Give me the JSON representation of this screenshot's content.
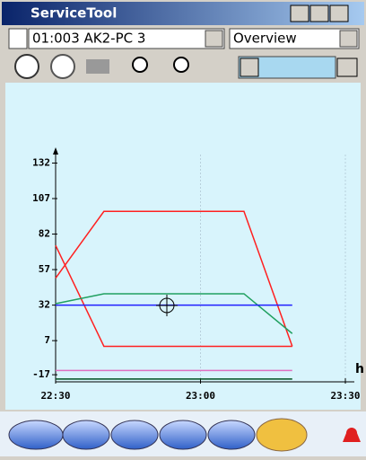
{
  "header": {
    "title": "ServiceTool"
  },
  "controls": {
    "device": "01:003 AK2-PC 3",
    "view": "Overview"
  },
  "chart_data": {
    "type": "line",
    "x_label": "h",
    "xlim": [
      0,
      60
    ],
    "xticks": [
      {
        "value": 0,
        "label": "22:30"
      },
      {
        "value": 30,
        "label": "23:00"
      },
      {
        "value": 60,
        "label": "23:30"
      }
    ],
    "ylim": [
      -22,
      138
    ],
    "yticks": [
      132,
      107,
      82,
      57,
      32,
      7,
      -17
    ],
    "grid": true,
    "series": [
      {
        "color": "#ff2020",
        "x": [
          0,
          10,
          39,
          49
        ],
        "values": [
          51,
          98,
          98,
          3
        ]
      },
      {
        "color": "#ff2020",
        "x": [
          0,
          10,
          49
        ],
        "values": [
          74,
          3,
          3
        ]
      },
      {
        "color": "#20a060",
        "x": [
          0,
          10,
          39,
          49
        ],
        "values": [
          33,
          40,
          40,
          12
        ]
      },
      {
        "color": "#2020ff",
        "x": [
          0,
          49
        ],
        "values": [
          32,
          32
        ]
      },
      {
        "color": "#e070c0",
        "x": [
          0,
          49
        ],
        "values": [
          -14,
          -14
        ]
      },
      {
        "color": "#005020",
        "x": [
          0,
          49
        ],
        "values": [
          -20,
          -20
        ]
      }
    ]
  }
}
